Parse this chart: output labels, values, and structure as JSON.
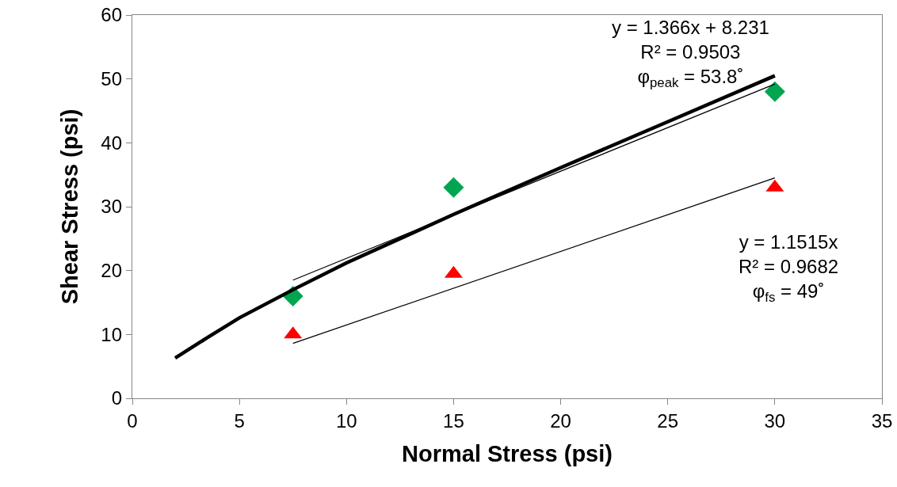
{
  "chart_data": {
    "type": "scatter",
    "xlabel": "Normal Stress (psi)",
    "ylabel": "Shear Stress (psi)",
    "xlim": [
      0,
      35
    ],
    "xticks": [
      0,
      5,
      10,
      15,
      20,
      25,
      30,
      35
    ],
    "ylim": [
      0,
      60
    ],
    "yticks": [
      0,
      10,
      20,
      30,
      40,
      50,
      60
    ],
    "grid": false,
    "legend": false,
    "series": [
      {
        "type": "line",
        "color": "#000000",
        "marker": "none",
        "x": [
          2,
          3.5,
          5,
          7.5,
          10,
          12.5,
          15,
          20,
          25,
          30
        ],
        "values": [
          6.3,
          9.5,
          12.6,
          17,
          21.2,
          25,
          28.8,
          36.1,
          43.3,
          50.5
        ]
      },
      {
        "type": "line",
        "color": "#000000",
        "marker": "none",
        "x": [
          7.5,
          30
        ],
        "values": [
          18.5,
          49.2
        ]
      },
      {
        "type": "line",
        "color": "#000000",
        "marker": "none",
        "x": [
          7.5,
          30
        ],
        "values": [
          8.6,
          34.5
        ]
      },
      {
        "color": "#00a550",
        "marker": "diamond",
        "x": [
          7.5,
          15,
          30
        ],
        "values": [
          16,
          33,
          48
        ]
      },
      {
        "color": "#ff0000",
        "marker": "triangle",
        "x": [
          7.5,
          15,
          30
        ],
        "values": [
          10,
          19.5,
          33
        ]
      }
    ],
    "annotations": [
      "y = 1.366x + 8.231\nR² = 0.9503\nφ$_{peak}$ = 53.8˚",
      "y = 1.1515x\nR² = 0.9682\nφ$_{fs}$ = 49˚"
    ]
  }
}
